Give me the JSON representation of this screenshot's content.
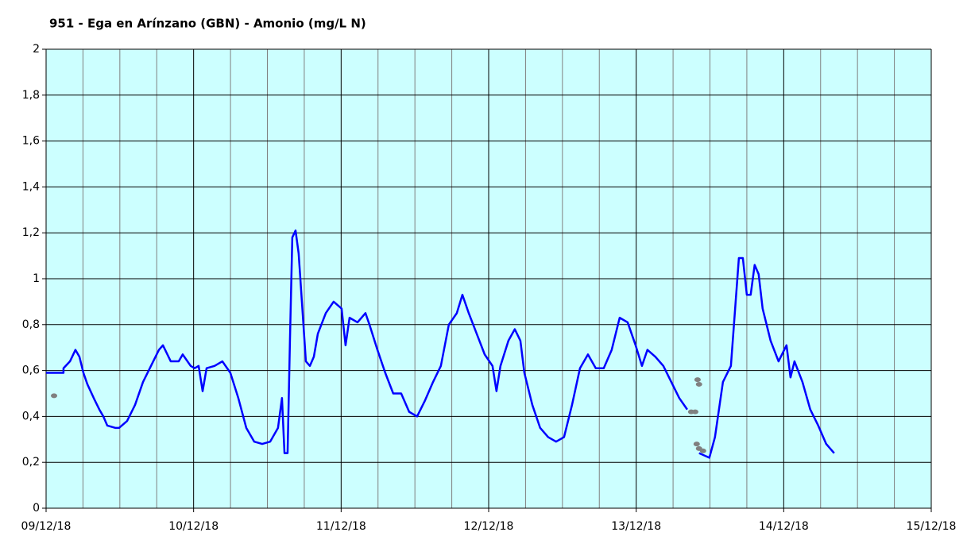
{
  "chart_data": {
    "type": "line",
    "title": "951 - Ega en Arínzano (GBN) - Amonio (mg/L N)",
    "xlim": [
      0,
      6
    ],
    "xticks": [
      {
        "value": 0,
        "label": "09/12/18"
      },
      {
        "value": 1,
        "label": "10/12/18"
      },
      {
        "value": 2,
        "label": "11/12/18"
      },
      {
        "value": 3,
        "label": "12/12/18"
      },
      {
        "value": 4,
        "label": "13/12/18"
      },
      {
        "value": 5,
        "label": "14/12/18"
      },
      {
        "value": 6,
        "label": "15/12/18"
      }
    ],
    "xgrid_minor": [
      0.25,
      0.5,
      0.75,
      1.25,
      1.5,
      1.75,
      2.25,
      2.5,
      2.75,
      3.25,
      3.5,
      3.75,
      4.25,
      4.5,
      4.75,
      5.25,
      5.5,
      5.75
    ],
    "ylim": [
      0,
      2
    ],
    "yticks": [
      0,
      {
        "value": 0.2,
        "label": "0,2"
      },
      {
        "value": 0.4,
        "label": "0,4"
      },
      {
        "value": 0.6,
        "label": "0,6"
      },
      {
        "value": 0.8,
        "label": "0,8"
      },
      1,
      {
        "value": 1.2,
        "label": "1,2"
      },
      {
        "value": 1.4,
        "label": "1,4"
      },
      {
        "value": 1.6,
        "label": "1,6"
      },
      {
        "value": 1.8,
        "label": "1,8"
      },
      2
    ],
    "grid": true,
    "background": "#ccffff",
    "series": [
      {
        "color": "#0000ff",
        "mode": "lines",
        "x": [
          0,
          0.118,
          0.118,
          0.162,
          0.199,
          0.226,
          0.253,
          0.28,
          0.323,
          0.361,
          0.388,
          0.415,
          0.469,
          0.495,
          0.549,
          0.603,
          0.657,
          0.711,
          0.765,
          0.792,
          0.845,
          0.899,
          0.926,
          0.98,
          1.007,
          1.034,
          1.061,
          1.088,
          1.142,
          1.195,
          1.249,
          1.303,
          1.357,
          1.411,
          1.465,
          1.519,
          1.572,
          1.599,
          1.616,
          1.637,
          1.653,
          1.669,
          1.691,
          1.712,
          1.734,
          1.761,
          1.788,
          1.815,
          1.842,
          1.896,
          1.949,
          2.003,
          2.03,
          2.057,
          2.111,
          2.165,
          2.192,
          2.246,
          2.299,
          2.353,
          2.407,
          2.461,
          2.515,
          2.569,
          2.623,
          2.676,
          2.73,
          2.784,
          2.822,
          2.865,
          2.919,
          2.973,
          3.026,
          3.053,
          3.08,
          3.134,
          3.177,
          3.215,
          3.242,
          3.296,
          3.349,
          3.403,
          3.457,
          3.511,
          3.565,
          3.619,
          3.673,
          3.726,
          3.78,
          3.834,
          3.888,
          3.942,
          3.996,
          4.039,
          4.076,
          4.13,
          4.184,
          4.238,
          4.292,
          4.346,
          4.38,
          4.426,
          4.496,
          4.534,
          4.588,
          4.642,
          4.696,
          4.723,
          4.75,
          4.776,
          4.803,
          4.83,
          4.857,
          4.911,
          4.965,
          5.019,
          5.046,
          5.073,
          5.127,
          5.18,
          5.234,
          5.288,
          5.342
        ],
        "values": [
          0.59,
          0.59,
          0.61,
          0.64,
          0.69,
          0.66,
          0.59,
          0.54,
          0.48,
          0.43,
          0.4,
          0.36,
          0.35,
          0.35,
          0.38,
          0.45,
          0.55,
          0.62,
          0.69,
          0.71,
          0.64,
          0.64,
          0.67,
          0.62,
          0.61,
          0.62,
          0.51,
          0.61,
          0.62,
          0.64,
          0.59,
          0.48,
          0.35,
          0.29,
          0.28,
          0.29,
          0.35,
          0.48,
          0.24,
          0.24,
          0.73,
          1.18,
          1.21,
          1.11,
          0.9,
          0.64,
          0.62,
          0.66,
          0.76,
          0.85,
          0.9,
          0.87,
          0.71,
          0.83,
          0.81,
          0.85,
          0.8,
          0.69,
          0.59,
          0.5,
          0.5,
          0.42,
          0.4,
          0.47,
          0.55,
          0.62,
          0.8,
          0.85,
          0.93,
          0.85,
          0.76,
          0.67,
          0.62,
          0.51,
          0.62,
          0.73,
          0.78,
          0.73,
          0.59,
          0.45,
          0.35,
          0.31,
          0.29,
          0.31,
          0.45,
          0.61,
          0.67,
          0.61,
          0.61,
          0.69,
          0.83,
          0.81,
          0.71,
          0.62,
          0.69,
          0.66,
          0.62,
          0.55,
          0.48,
          0.43,
          null,
          0.24,
          0.22,
          0.31,
          0.55,
          0.62,
          1.09,
          1.09,
          0.93,
          0.93,
          1.06,
          1.02,
          0.87,
          0.73,
          0.64,
          0.71,
          0.57,
          0.64,
          0.55,
          0.43,
          0.36,
          0.28,
          0.24
        ]
      },
      {
        "color": "#808080",
        "mode": "markers",
        "x": [
          0.054,
          4.373,
          4.4,
          4.416,
          4.426,
          4.41,
          4.426,
          4.453
        ],
        "values": [
          0.49,
          0.42,
          0.42,
          0.56,
          0.54,
          0.28,
          0.26,
          0.25
        ]
      }
    ]
  }
}
